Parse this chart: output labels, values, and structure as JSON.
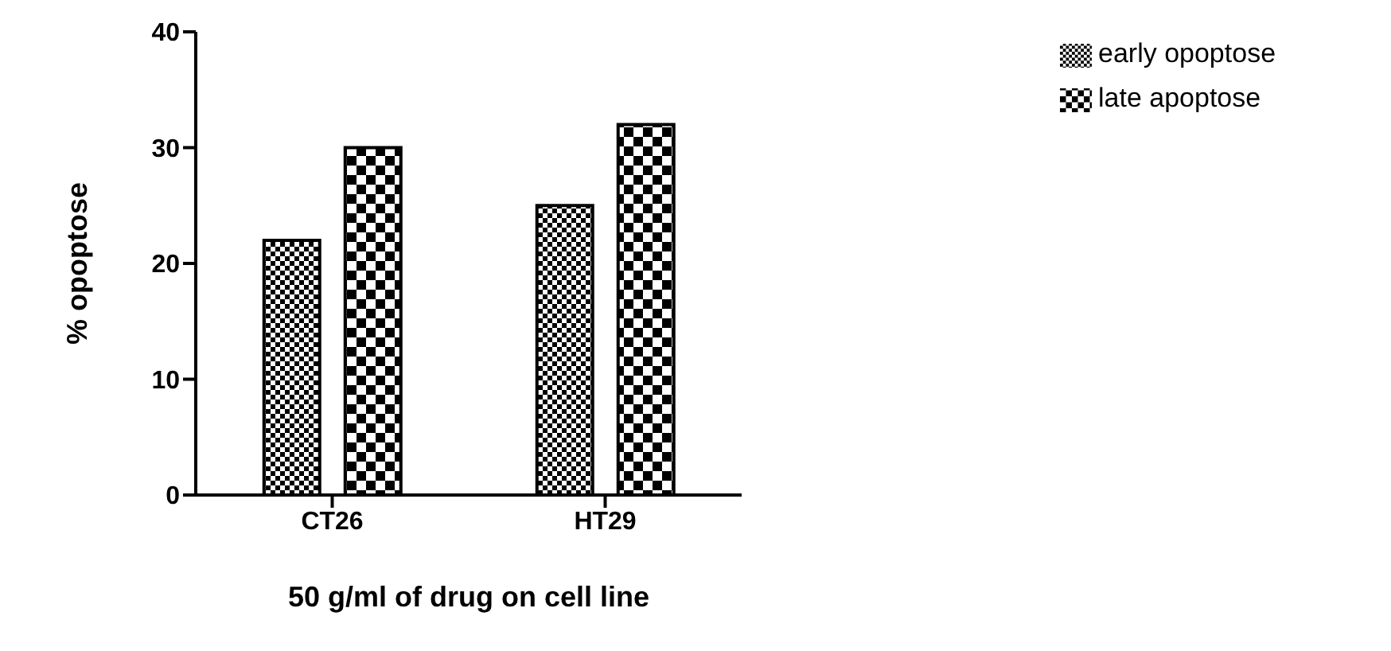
{
  "chart_data": {
    "type": "bar",
    "xlabel": "50 g/ml of drug on cell line",
    "ylabel": "% opoptose",
    "categories": [
      "CT26",
      "HT29"
    ],
    "series": [
      {
        "name": "early opoptose",
        "color": "#000000",
        "values": [
          22,
          25
        ]
      },
      {
        "name": "late apoptose",
        "color": "#000000",
        "values": [
          30,
          32
        ]
      }
    ],
    "ylim": [
      0,
      40
    ],
    "yticks": [
      0,
      10,
      20,
      30,
      40
    ],
    "grid": false,
    "legend": "top right"
  }
}
